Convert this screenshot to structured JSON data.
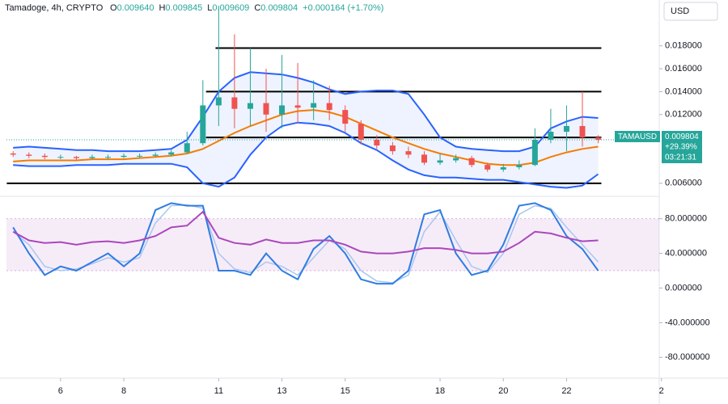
{
  "chart_data": [
    {
      "type": "candlestick",
      "title": "Tamadoge, 4h, CRYPTO",
      "currency": "USD",
      "quote": {
        "labels": [
          "O",
          "H",
          "L",
          "C"
        ],
        "values": [
          0.00964,
          0.009845,
          0.009609,
          0.009804
        ],
        "value_labels": [
          "0.009640",
          "0.009845",
          "0.009609",
          "0.009804"
        ],
        "change": 0.000164,
        "change_label": "+0.000164 (+1.70%)",
        "symbol": "TAMAUSD",
        "change_pct": 29.39,
        "change_pct_label": "+29.39%",
        "countdown": "03:21:31"
      },
      "x": [
        4.5,
        5,
        5.5,
        6,
        6.5,
        7,
        7.5,
        8,
        8.5,
        9,
        9.5,
        10,
        10.5,
        11,
        11.5,
        12,
        12.5,
        13,
        13.5,
        14,
        14.5,
        15,
        15.5,
        16,
        16.5,
        17,
        17.5,
        18,
        18.5,
        19,
        19.5,
        20,
        20.5,
        21,
        21.5,
        22,
        22.5,
        23
      ],
      "open": [
        0.0086,
        0.0085,
        0.0084,
        0.0083,
        0.0083,
        0.0082,
        0.0083,
        0.0083,
        0.0084,
        0.0084,
        0.0085,
        0.0087,
        0.0095,
        0.0128,
        0.0135,
        0.0125,
        0.013,
        0.012,
        0.0128,
        0.0126,
        0.013,
        0.0124,
        0.0112,
        0.0098,
        0.0093,
        0.0088,
        0.0085,
        0.0078,
        0.008,
        0.0082,
        0.0076,
        0.0072,
        0.0074,
        0.0076,
        0.0098,
        0.0105,
        0.011,
        0.01
      ],
      "high": [
        0.0088,
        0.0087,
        0.0086,
        0.0085,
        0.0084,
        0.0085,
        0.0085,
        0.0086,
        0.0086,
        0.0087,
        0.0089,
        0.0105,
        0.015,
        0.0215,
        0.019,
        0.0178,
        0.016,
        0.0172,
        0.0165,
        0.015,
        0.0145,
        0.0128,
        0.0115,
        0.0102,
        0.0096,
        0.0092,
        0.0088,
        0.0086,
        0.0085,
        0.0084,
        0.0078,
        0.0077,
        0.008,
        0.0108,
        0.0125,
        0.0128,
        0.014,
        0.0102
      ],
      "low": [
        0.0083,
        0.0082,
        0.0081,
        0.0081,
        0.008,
        0.0081,
        0.0081,
        0.0082,
        0.0082,
        0.0083,
        0.0084,
        0.0086,
        0.0093,
        0.011,
        0.0108,
        0.011,
        0.0105,
        0.0108,
        0.0112,
        0.0115,
        0.0115,
        0.0105,
        0.0094,
        0.009,
        0.0085,
        0.0082,
        0.0076,
        0.0076,
        0.0078,
        0.0074,
        0.007,
        0.007,
        0.0072,
        0.0075,
        0.0095,
        0.0088,
        0.0092,
        0.0095
      ],
      "close": [
        0.0085,
        0.0084,
        0.0083,
        0.0083,
        0.0082,
        0.0083,
        0.0083,
        0.0084,
        0.0084,
        0.0085,
        0.0087,
        0.0095,
        0.0128,
        0.0135,
        0.0125,
        0.013,
        0.012,
        0.0128,
        0.0126,
        0.013,
        0.0124,
        0.0112,
        0.0098,
        0.0093,
        0.0088,
        0.0085,
        0.0078,
        0.008,
        0.0082,
        0.0076,
        0.0072,
        0.0074,
        0.0076,
        0.0098,
        0.0105,
        0.011,
        0.01,
        0.0098
      ],
      "up_color": "#26a69a",
      "down_color": "#ef5350",
      "bands": {
        "color": "#2962ff",
        "basis_color": "#f57c00",
        "upper": [
          0.0091,
          0.0092,
          0.0091,
          0.009,
          0.0089,
          0.0089,
          0.0088,
          0.0088,
          0.0088,
          0.0089,
          0.009,
          0.0098,
          0.0118,
          0.014,
          0.0152,
          0.0157,
          0.0156,
          0.0155,
          0.0152,
          0.0148,
          0.0142,
          0.0138,
          0.014,
          0.0141,
          0.0141,
          0.0138,
          0.012,
          0.01,
          0.0092,
          0.009,
          0.0089,
          0.0088,
          0.0088,
          0.0092,
          0.0108,
          0.0114,
          0.0118,
          0.0117
        ],
        "basis": [
          0.0079,
          0.008,
          0.008,
          0.008,
          0.008,
          0.0081,
          0.0081,
          0.0081,
          0.0082,
          0.0083,
          0.0084,
          0.0086,
          0.009,
          0.0097,
          0.0104,
          0.011,
          0.0115,
          0.012,
          0.0123,
          0.0124,
          0.0122,
          0.0118,
          0.0112,
          0.0106,
          0.01,
          0.0095,
          0.009,
          0.0086,
          0.0083,
          0.008,
          0.0077,
          0.0076,
          0.0076,
          0.0078,
          0.0083,
          0.0087,
          0.009,
          0.0092
        ],
        "lower": [
          0.0076,
          0.0075,
          0.0075,
          0.0075,
          0.0076,
          0.0076,
          0.0076,
          0.0077,
          0.0077,
          0.0077,
          0.0077,
          0.0074,
          0.006,
          0.0057,
          0.0065,
          0.0085,
          0.01,
          0.011,
          0.0113,
          0.0112,
          0.011,
          0.0104,
          0.0095,
          0.0089,
          0.008,
          0.0072,
          0.0067,
          0.0065,
          0.0065,
          0.0064,
          0.0063,
          0.0063,
          0.0061,
          0.0059,
          0.0057,
          0.0056,
          0.0058,
          0.0068
        ]
      },
      "levels": [
        {
          "value": 0.0178,
          "start": 10.9,
          "end": 23.1
        },
        {
          "value": 0.014,
          "start": 10.6,
          "end": 23.1
        },
        {
          "value": 0.01,
          "start": 10.6,
          "end": 23.1
        },
        {
          "value": 0.006,
          "start": 4.3,
          "end": 23.1
        }
      ],
      "ylim": [
        0.00486,
        0.022
      ],
      "yticks": [
        {
          "value": 0.018,
          "label": "0.018000"
        },
        {
          "value": 0.016,
          "label": "0.016000"
        },
        {
          "value": 0.014,
          "label": "0.014000"
        },
        {
          "value": 0.012,
          "label": "0.012000"
        },
        {
          "value": 0.006,
          "label": "0.006000"
        }
      ],
      "xlim": [
        4.29,
        24.93
      ],
      "xticks": [
        6,
        8,
        11,
        13,
        15,
        18,
        20,
        22,
        {
          "value": 25,
          "label": "2"
        }
      ]
    },
    {
      "type": "line",
      "x": [
        4.5,
        5,
        5.5,
        6,
        6.5,
        7,
        7.5,
        8,
        8.5,
        9,
        9.5,
        10,
        10.5,
        11,
        11.5,
        12,
        12.5,
        13,
        13.5,
        14,
        14.5,
        15,
        15.5,
        16,
        16.5,
        17,
        17.5,
        18,
        18.5,
        19,
        19.5,
        20,
        20.5,
        21,
        21.5,
        22,
        22.5,
        23
      ],
      "k": [
        70,
        40,
        15,
        25,
        20,
        30,
        40,
        25,
        40,
        90,
        98,
        95,
        95,
        20,
        20,
        15,
        40,
        20,
        10,
        45,
        60,
        40,
        10,
        5,
        5,
        20,
        85,
        90,
        40,
        15,
        20,
        50,
        95,
        98,
        90,
        60,
        45,
        20
      ],
      "d": [
        65,
        50,
        25,
        20,
        22,
        28,
        35,
        30,
        35,
        75,
        95,
        96,
        92,
        40,
        22,
        18,
        30,
        25,
        15,
        35,
        55,
        45,
        20,
        8,
        6,
        15,
        65,
        88,
        55,
        25,
        18,
        40,
        85,
        95,
        92,
        70,
        50,
        30
      ],
      "rsi": [
        65,
        55,
        52,
        53,
        50,
        53,
        54,
        52,
        55,
        60,
        70,
        72,
        88,
        58,
        52,
        50,
        56,
        52,
        52,
        55,
        55,
        50,
        42,
        40,
        40,
        42,
        46,
        46,
        44,
        40,
        40,
        42,
        52,
        65,
        63,
        58,
        54,
        55
      ],
      "k_color": "#2f7de1",
      "d_color": "#a8c7f0",
      "rsi_color": "#ab47bc",
      "band": [
        20,
        80
      ],
      "band_color": "#ab47bc",
      "ylim": [
        -104,
        103
      ],
      "yticks": [
        {
          "value": 80,
          "label": "80.000000"
        },
        {
          "value": 40,
          "label": "40.000000"
        },
        {
          "value": 0,
          "label": "0.000000"
        },
        {
          "value": -40,
          "label": "-40.000000"
        },
        {
          "value": -80,
          "label": "-80.000000"
        }
      ]
    }
  ]
}
